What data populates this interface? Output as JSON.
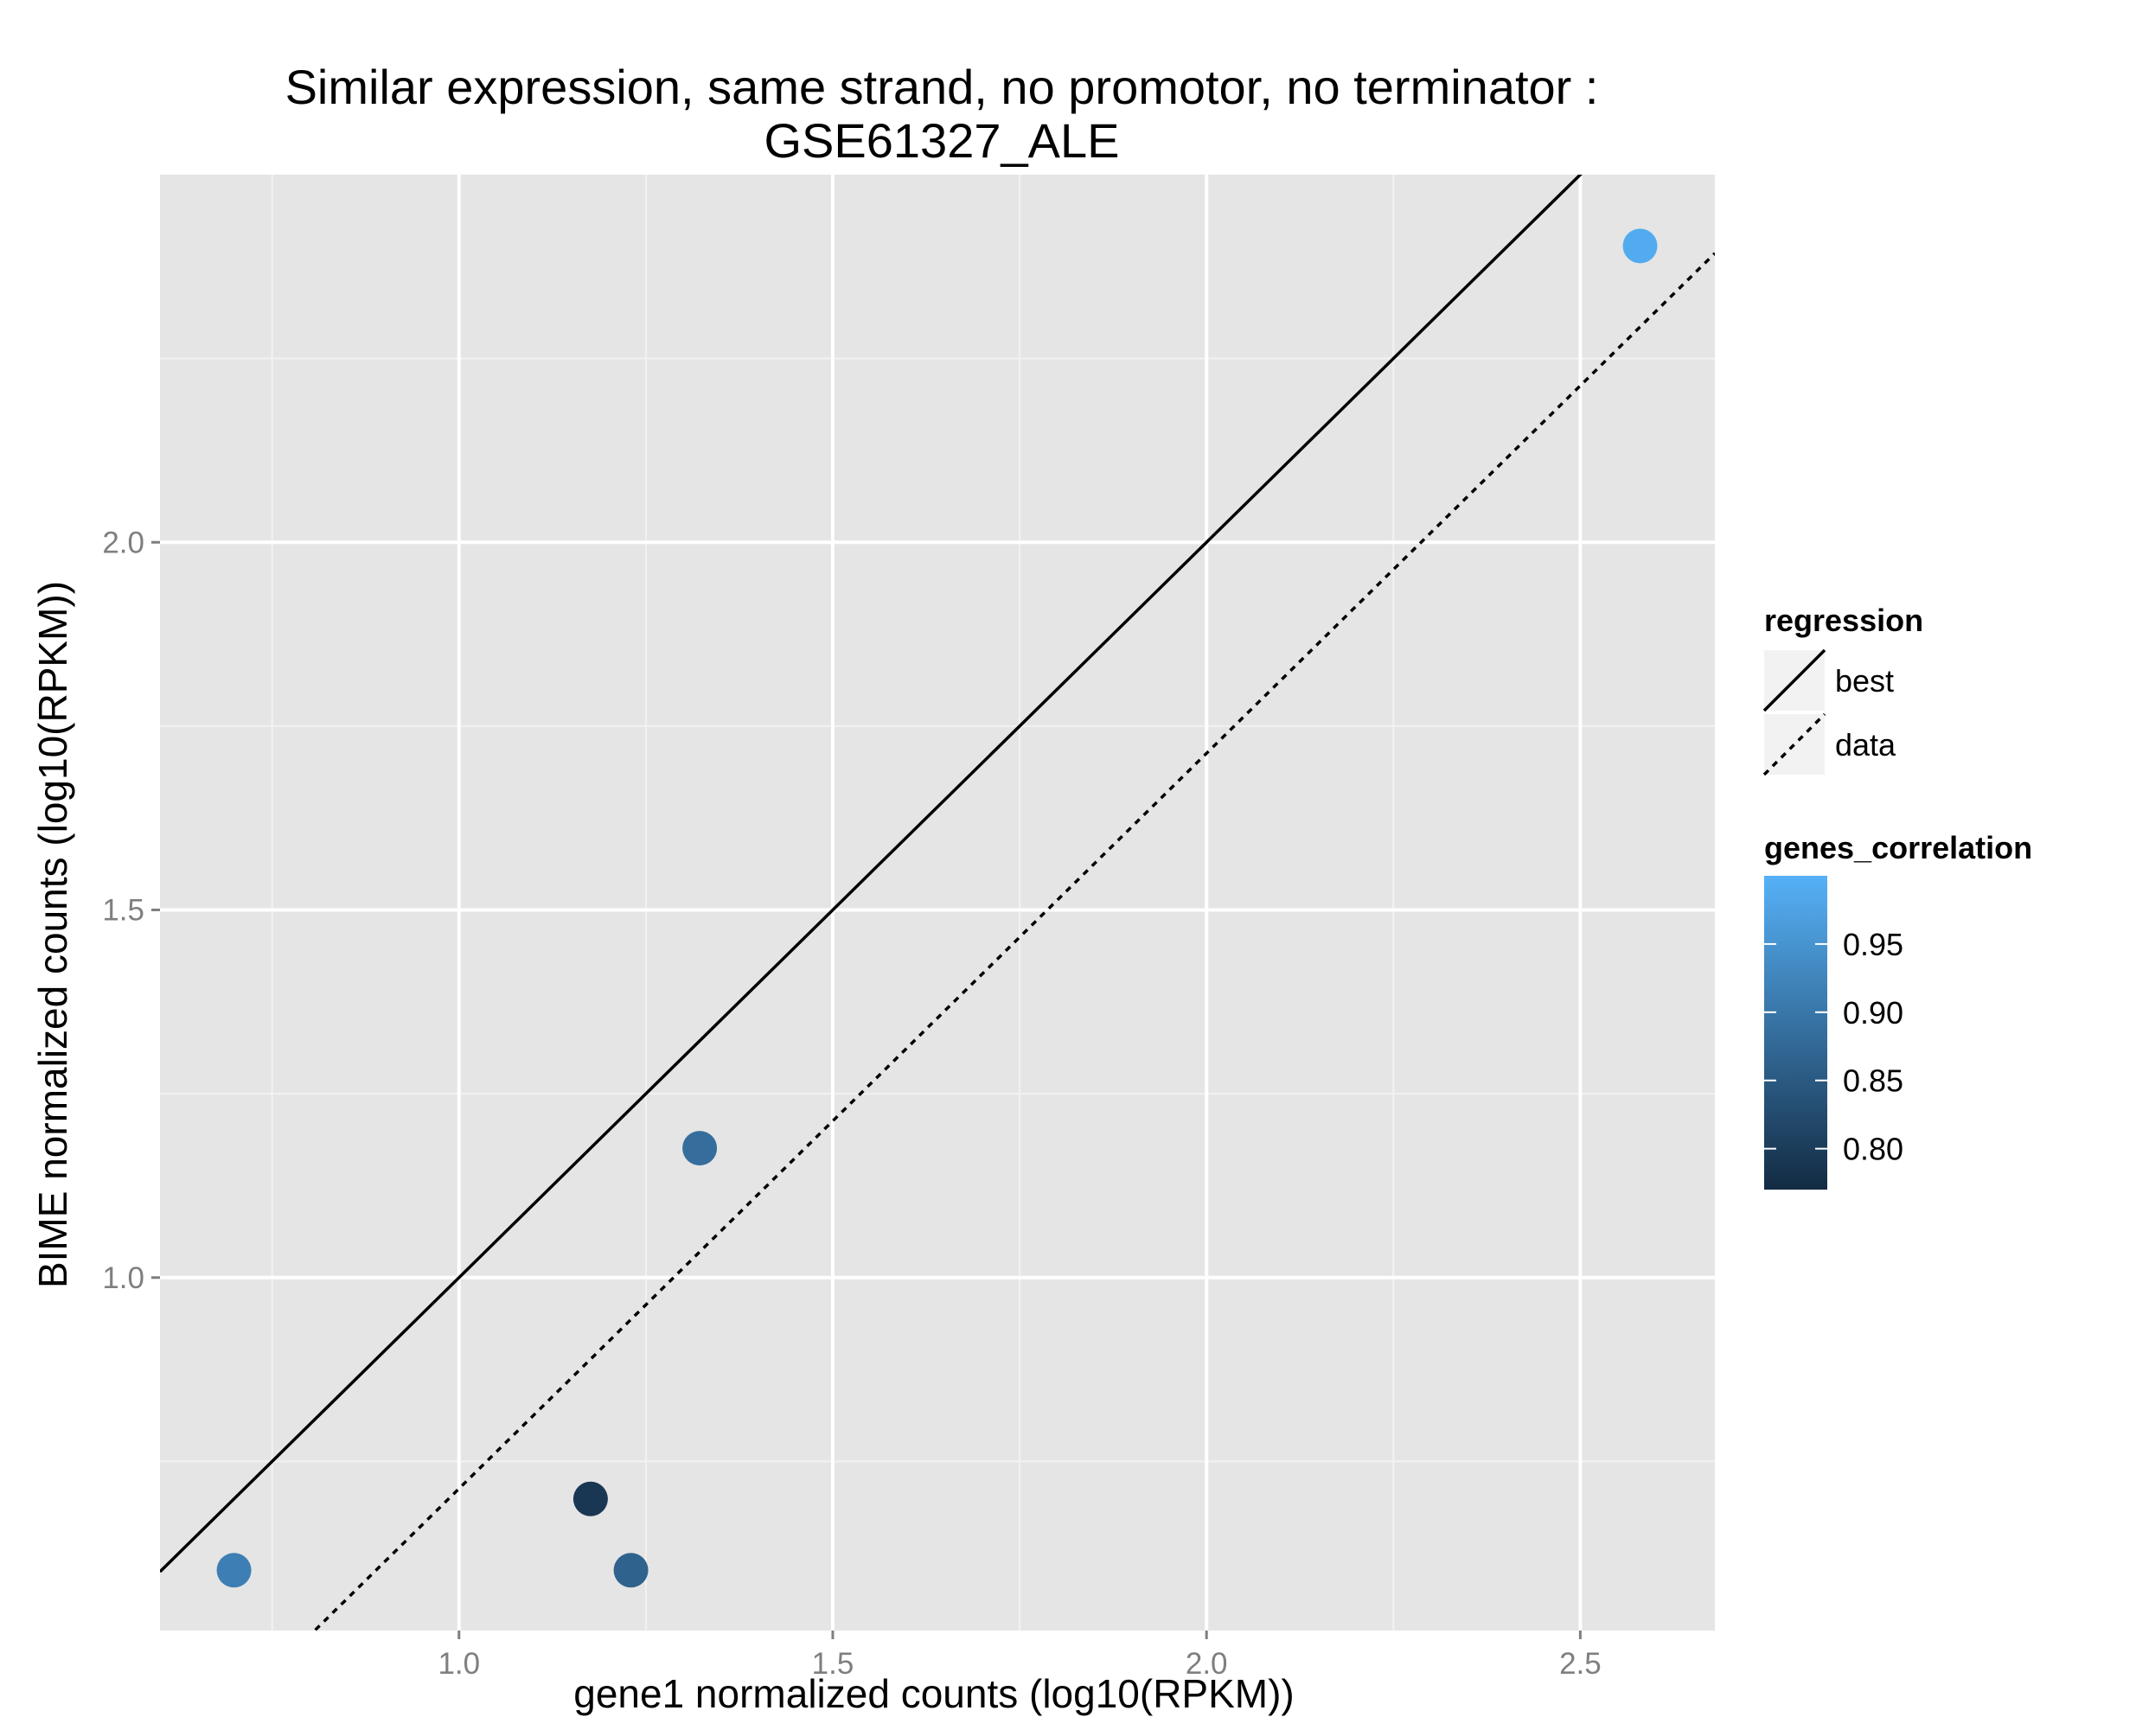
{
  "chart_data": {
    "type": "scatter",
    "title_line1": "Similar expression, same strand, no promotor, no terminator :",
    "title_line2": "GSE61327_ALE",
    "xlabel": "gene1 normalized counts (log10(RPKM))",
    "ylabel": "BIME normalized counts (log10(RPKM))",
    "xlim": [
      0.6,
      2.68
    ],
    "ylim": [
      0.52,
      2.5
    ],
    "x_ticks": [
      1.0,
      1.5,
      2.0,
      2.5
    ],
    "y_ticks": [
      1.0,
      1.5,
      2.0
    ],
    "x_tick_labels": [
      "1.0",
      "1.5",
      "2.0",
      "2.5"
    ],
    "y_tick_labels": [
      "1.0",
      "1.5",
      "2.0"
    ],
    "grid": true,
    "background": "#e5e5e5",
    "points": [
      {
        "x": 0.699,
        "y": 0.602,
        "genes_correlation": 0.915
      },
      {
        "x": 1.176,
        "y": 0.699,
        "genes_correlation": 0.79
      },
      {
        "x": 1.23,
        "y": 0.602,
        "genes_correlation": 0.865
      },
      {
        "x": 1.322,
        "y": 1.176,
        "genes_correlation": 0.885
      },
      {
        "x": 2.58,
        "y": 2.403,
        "genes_correlation": 0.99
      }
    ],
    "lines": [
      {
        "name": "best",
        "style": "solid",
        "slope": 1.0,
        "intercept": 0.0
      },
      {
        "name": "data",
        "style": "dotted",
        "slope": 1.0,
        "intercept": -0.287
      }
    ],
    "legend_regression": {
      "title": "regression",
      "items": [
        {
          "label": "best",
          "style": "solid"
        },
        {
          "label": "data",
          "style": "dotted"
        }
      ]
    },
    "legend_color": {
      "title": "genes_correlation",
      "min": 0.77,
      "max": 1.0,
      "low_color": "#132b43",
      "high_color": "#56b1f7",
      "ticks": [
        0.8,
        0.85,
        0.9,
        0.95
      ],
      "tick_labels": [
        "0.80",
        "0.85",
        "0.90",
        "0.95"
      ]
    }
  }
}
